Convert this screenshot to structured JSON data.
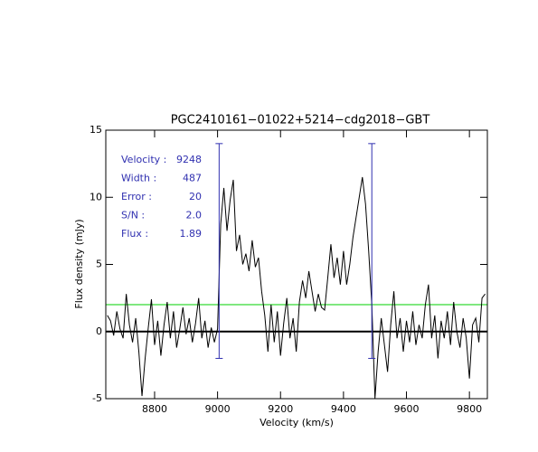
{
  "chart_data": {
    "type": "line",
    "title": "PGC2410161−01022+5214−cdg2018−GBT",
    "xlabel": "Velocity (km/s)",
    "ylabel": "Flux density (mJy)",
    "xlim": [
      8645,
      9857
    ],
    "ylim": [
      -5,
      15
    ],
    "xticks": [
      8800,
      9000,
      9200,
      9400,
      9600,
      9800
    ],
    "yticks": [
      -5,
      0,
      5,
      10,
      15
    ],
    "x": [
      8650,
      8660,
      8670,
      8680,
      8690,
      8700,
      8710,
      8720,
      8730,
      8740,
      8750,
      8760,
      8770,
      8780,
      8790,
      8800,
      8810,
      8820,
      8830,
      8840,
      8850,
      8860,
      8870,
      8880,
      8890,
      8900,
      8910,
      8920,
      8930,
      8940,
      8950,
      8960,
      8970,
      8980,
      8990,
      9000,
      9010,
      9020,
      9030,
      9040,
      9050,
      9060,
      9070,
      9080,
      9090,
      9100,
      9110,
      9120,
      9130,
      9140,
      9150,
      9160,
      9170,
      9180,
      9190,
      9200,
      9210,
      9220,
      9230,
      9240,
      9250,
      9260,
      9270,
      9280,
      9290,
      9300,
      9310,
      9320,
      9330,
      9340,
      9350,
      9360,
      9370,
      9380,
      9390,
      9400,
      9410,
      9420,
      9430,
      9440,
      9450,
      9460,
      9470,
      9480,
      9490,
      9500,
      9510,
      9520,
      9530,
      9540,
      9550,
      9560,
      9570,
      9580,
      9590,
      9600,
      9610,
      9620,
      9630,
      9640,
      9650,
      9660,
      9670,
      9680,
      9690,
      9700,
      9710,
      9720,
      9730,
      9740,
      9750,
      9760,
      9770,
      9780,
      9790,
      9800,
      9810,
      9820,
      9830,
      9840,
      9850
    ],
    "series": [
      {
        "color": "#000000",
        "values": [
          1.2,
          0.8,
          -0.3,
          1.5,
          0.2,
          -0.5,
          2.8,
          0.5,
          -0.8,
          1.0,
          -1.5,
          -4.8,
          -2.0,
          0.3,
          2.4,
          -1.0,
          0.8,
          -1.8,
          0.5,
          2.2,
          -0.5,
          1.5,
          -1.2,
          0.2,
          1.8,
          -0.2,
          1.0,
          -0.8,
          0.6,
          2.5,
          -0.5,
          0.8,
          -1.2,
          0.3,
          -0.8,
          0.2,
          8.0,
          10.7,
          7.5,
          9.8,
          11.3,
          6.0,
          7.2,
          5.0,
          5.8,
          4.5,
          6.8,
          4.8,
          5.5,
          3.0,
          1.2,
          -1.5,
          2.0,
          -0.8,
          1.5,
          -1.8,
          0.6,
          2.5,
          -0.5,
          1.0,
          -1.5,
          2.2,
          3.8,
          2.5,
          4.5,
          3.0,
          1.5,
          2.8,
          1.8,
          1.6,
          4.0,
          6.5,
          4.0,
          5.5,
          3.5,
          6.0,
          3.5,
          5.0,
          7.0,
          8.5,
          10.0,
          11.5,
          9.5,
          6.0,
          2.0,
          -5.0,
          -1.5,
          1.0,
          -1.0,
          -3.0,
          0.5,
          3.0,
          -0.5,
          1.0,
          -1.5,
          0.8,
          -0.8,
          1.5,
          -1.0,
          0.5,
          -0.5,
          2.0,
          3.5,
          -0.5,
          1.2,
          -2.0,
          0.8,
          -0.5,
          1.5,
          -1.0,
          2.2,
          0.0,
          -1.2,
          1.0,
          -0.5,
          -3.5,
          0.5,
          1.0,
          -0.8,
          2.5,
          2.8
        ]
      }
    ],
    "hlines": [
      {
        "value": 0,
        "color": "#000000"
      },
      {
        "value": 2,
        "color": "#00d000"
      }
    ],
    "vlines": [
      {
        "value": 9005,
        "ymin": -2,
        "ymax": 14,
        "color": "#3030b0"
      },
      {
        "value": 9490,
        "ymin": -2,
        "ymax": 14,
        "color": "#3030b0"
      }
    ],
    "stats": [
      {
        "label": "Velocity :",
        "value": "9248"
      },
      {
        "label": "Width :",
        "value": "487"
      },
      {
        "label": "Error :",
        "value": "20"
      },
      {
        "label": "S/N :",
        "value": "2.0"
      },
      {
        "label": "Flux :",
        "value": "1.89"
      }
    ],
    "stats_color": "#3030b0"
  }
}
